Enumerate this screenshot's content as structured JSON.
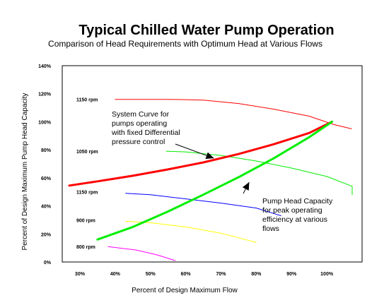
{
  "chart_data": {
    "type": "line",
    "title": "Typical Chilled Water Pump Operation",
    "subtitle": "Comparison of Head Requirements with Optimum Head at Various Flows",
    "xlabel": "Percent of Design Maximum Flow",
    "ylabel": "Percent of Design Maximum Pump Head Capacity",
    "xlim": [
      25,
      110
    ],
    "ylim": [
      0,
      140
    ],
    "x_ticks": [
      "30%",
      "40%",
      "50%",
      "60%",
      "70%",
      "80%",
      "90%",
      "100%"
    ],
    "y_ticks": [
      "0%",
      "20%",
      "40%",
      "60%",
      "80%",
      "100%",
      "120%",
      "140%"
    ],
    "grid": false,
    "legend": "none",
    "series": [
      {
        "name": "1150 rpm",
        "color": "#ff0000",
        "width": 1,
        "x": [
          40,
          55,
          65,
          75,
          85,
          95,
          102,
          107
        ],
        "y": [
          116,
          116,
          115.5,
          113,
          109,
          104,
          98,
          95
        ]
      },
      {
        "name": "1050 rpm",
        "color": "#00ee00",
        "width": 1,
        "x": [
          54.5,
          60,
          70,
          80,
          90,
          100,
          109,
          117
        ],
        "y": [
          79,
          78.5,
          76,
          72,
          67,
          61,
          54,
          48
        ]
      },
      {
        "name": "1150 rpm",
        "color": "#0000ff",
        "width": 1,
        "x": [
          43,
          50,
          60,
          70,
          80,
          87
        ],
        "y": [
          49,
          48,
          45,
          42,
          38.5,
          33
        ]
      },
      {
        "name": "900 rpm",
        "color": "#ffff00",
        "width": 1,
        "x": [
          43,
          50,
          60,
          70,
          80
        ],
        "y": [
          29,
          28,
          25,
          20.5,
          14
        ]
      },
      {
        "name": "800 rpm",
        "color": "#ff00ff",
        "width": 1,
        "x": [
          38,
          46,
          52,
          57
        ],
        "y": [
          11,
          8.5,
          5,
          1
        ]
      },
      {
        "name": "System Curve for pumps operating with fixed Differential pressure control",
        "color": "#ff0000",
        "width": 3,
        "x": [
          27,
          35,
          45,
          55,
          65,
          75,
          85,
          95,
          101.5
        ],
        "y": [
          54.5,
          57.5,
          61.5,
          66,
          71,
          77,
          84,
          92,
          100
        ]
      },
      {
        "name": "Pump Head Capacity for peak operating efficiency at various flows",
        "color": "#00ee00",
        "width": 3,
        "x": [
          35,
          45,
          55,
          65,
          75,
          85,
          95,
          101.5
        ],
        "y": [
          16,
          25,
          36,
          48,
          60.5,
          74,
          89,
          100
        ]
      }
    ],
    "rpm_labels": [
      {
        "text": "1150 rpm",
        "y": 116
      },
      {
        "text": "1050 rpm",
        "y": 79
      },
      {
        "text": "1150 rpm",
        "y": 50
      },
      {
        "text": "900 rpm",
        "y": 30
      },
      {
        "text": "800 rpm",
        "y": 11
      }
    ],
    "annotations": [
      {
        "lines": [
          "System Curve for",
          "pumps operating",
          "with fixed Differential",
          "pressure control"
        ],
        "arrow_to": [
          68,
          74
        ]
      },
      {
        "lines": [
          "Pump Head Capacity",
          "for peak operating",
          "efficiency at various",
          "flows"
        ],
        "arrow_to": [
          78,
          57
        ]
      }
    ]
  }
}
